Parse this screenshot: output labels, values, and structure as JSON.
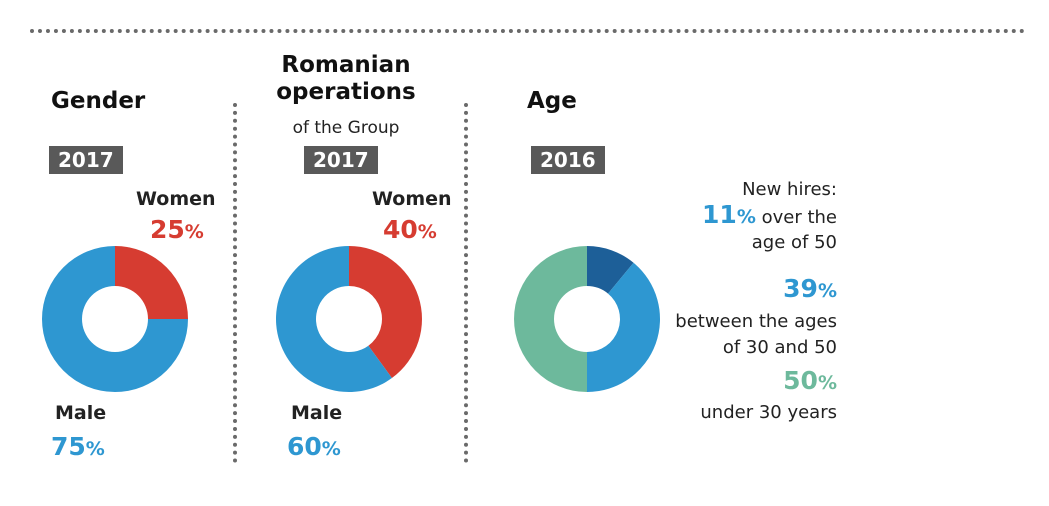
{
  "colors": {
    "women": "#d63c31",
    "male": "#2e97d1",
    "over50": "#1d5f98",
    "between30_50": "#2e97d1",
    "under30": "#6db99c"
  },
  "panels": {
    "gender": {
      "title": "Gender",
      "year": "2017",
      "women_label": "Women",
      "women_pct": "25",
      "male_label": "Male",
      "male_pct": "75",
      "pct_symbol": "%"
    },
    "romanian": {
      "title_line1": "Romanian",
      "title_line2": "operations",
      "subtitle": "of the Group",
      "year": "2017",
      "women_label": "Women",
      "women_pct": "40",
      "male_label": "Male",
      "male_pct": "60",
      "pct_symbol": "%"
    },
    "age": {
      "title": "Age",
      "year": "2016",
      "new_hires": "New hires:",
      "over50_pct": "11",
      "over50_text1": "over the",
      "over50_text2": "age of 50",
      "between_pct": "39",
      "between_text1": "between the ages",
      "between_text2": "of 30 and 50",
      "under30_pct": "50",
      "under30_text": "under 30 years",
      "pct_symbol": "%"
    }
  },
  "chart_data": [
    {
      "type": "pie",
      "title": "Gender",
      "year": "2017",
      "slices": [
        {
          "name": "Women",
          "value": 25
        },
        {
          "name": "Male",
          "value": 75
        }
      ]
    },
    {
      "type": "pie",
      "title": "Romanian operations of the Group",
      "year": "2017",
      "slices": [
        {
          "name": "Women",
          "value": 40
        },
        {
          "name": "Male",
          "value": 60
        }
      ]
    },
    {
      "type": "pie",
      "title": "Age",
      "year": "2016",
      "slices": [
        {
          "name": "over the age of 50",
          "value": 11
        },
        {
          "name": "between the ages of 30 and 50",
          "value": 39
        },
        {
          "name": "under 30 years",
          "value": 50
        }
      ]
    }
  ]
}
